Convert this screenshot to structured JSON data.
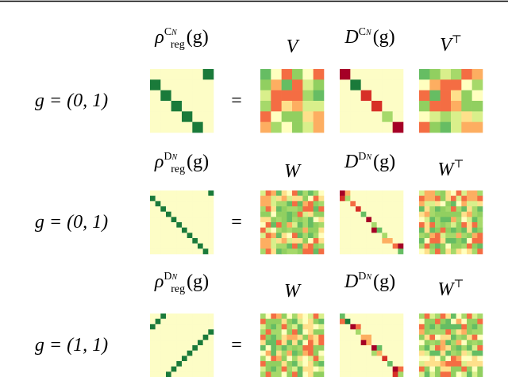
{
  "rows": [
    {
      "rho": {
        "base": "ρ",
        "sub": "reg",
        "sup": "C",
        "sup_sub": "N",
        "arg": "(g)"
      },
      "left": {
        "base": "V"
      },
      "diag": {
        "base": "D",
        "sup": "C",
        "sup_sub": "N",
        "arg": "(g)"
      },
      "right": {
        "base": "V",
        "sup": "⊤"
      },
      "g": "g = (0, 1)",
      "equals": "="
    },
    {
      "rho": {
        "base": "ρ",
        "sub": "reg",
        "sup": "D",
        "sup_sub": "N",
        "arg": "(g)"
      },
      "left": {
        "base": "W"
      },
      "diag": {
        "base": "D",
        "sup": "D",
        "sup_sub": "N",
        "arg": "(g)"
      },
      "right": {
        "base": "W",
        "sup": "⊤"
      },
      "g": "g = (0, 1)",
      "equals": "="
    },
    {
      "rho": {
        "base": "ρ",
        "sub": "reg",
        "sup": "D",
        "sup_sub": "N",
        "arg": "(g)"
      },
      "left": {
        "base": "W"
      },
      "diag": {
        "base": "D",
        "sup": "D",
        "sup_sub": "N",
        "arg": "(g)"
      },
      "right": {
        "base": "W",
        "sup": "⊤"
      },
      "g": "g = (1, 1)",
      "equals": "="
    }
  ]
}
